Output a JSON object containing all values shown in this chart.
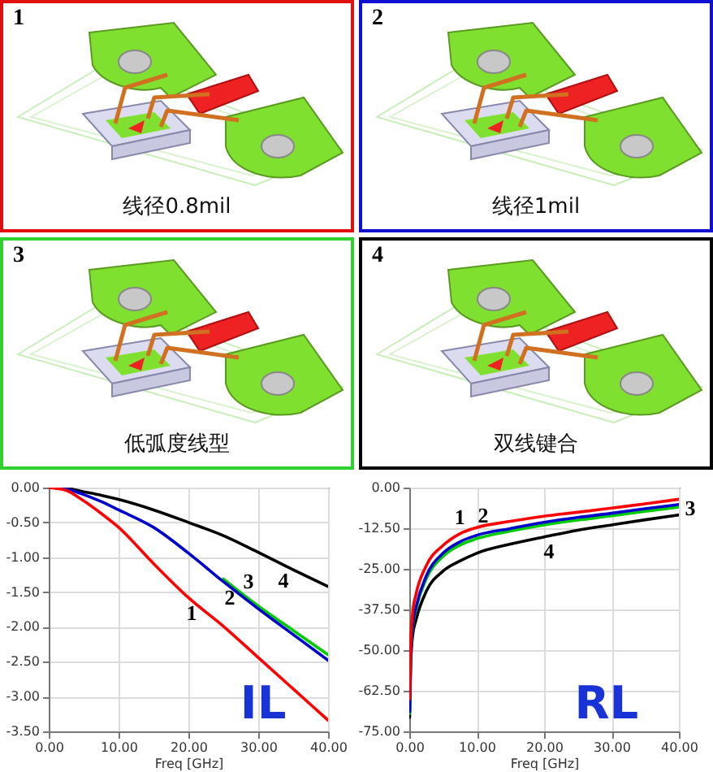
{
  "chart_data": [
    {
      "type": "other",
      "title": "1",
      "annotations": [
        "线径0.8mil"
      ],
      "color": "#e01010"
    },
    {
      "type": "other",
      "title": "2",
      "annotations": [
        "线径1mil"
      ],
      "color": "#1010d0"
    },
    {
      "type": "other",
      "title": "3",
      "annotations": [
        "低弧度线型"
      ],
      "color": "#30d030"
    },
    {
      "type": "other",
      "title": "4",
      "annotations": [
        "双线键合"
      ],
      "color": "#000000"
    },
    {
      "type": "line",
      "xlabel": "Freq [GHz]",
      "x": [
        0,
        2.5,
        5,
        7.5,
        10,
        15,
        20,
        25,
        30,
        35,
        40
      ],
      "series": [
        {
          "name": "1",
          "color": "#ff0000",
          "values": [
            0,
            -0.04,
            -0.19,
            -0.37,
            -0.57,
            -1.09,
            -1.58,
            -1.99,
            -2.44,
            -2.89,
            -3.34
          ]
        },
        {
          "name": "2",
          "color": "#0000cc",
          "values": [
            0,
            -0.02,
            -0.1,
            -0.2,
            -0.32,
            -0.57,
            -0.94,
            -1.35,
            -1.74,
            -2.11,
            -2.48
          ]
        },
        {
          "name": "3",
          "color": "#00cc00",
          "values": [
            null,
            null,
            null,
            null,
            null,
            null,
            null,
            -1.31,
            -1.7,
            -2.05,
            -2.4
          ]
        },
        {
          "name": "4",
          "color": "#000000",
          "values": [
            0,
            -0.01,
            -0.06,
            -0.11,
            -0.17,
            -0.32,
            -0.5,
            -0.69,
            -0.93,
            -1.18,
            -1.42
          ]
        }
      ],
      "xlim": [
        0,
        40
      ],
      "xticks": [
        {
          "value": 0,
          "label": "0.00"
        },
        {
          "value": 10,
          "label": "10.00"
        },
        {
          "value": 20,
          "label": "20.00"
        },
        {
          "value": 30,
          "label": "30.00"
        },
        {
          "value": 40,
          "label": "40.00"
        }
      ],
      "ylim": [
        -3.5,
        0
      ],
      "yticks": [
        {
          "value": 0,
          "label": "0.00"
        },
        {
          "value": -0.5,
          "label": "-0.50"
        },
        {
          "value": -1,
          "label": "-1.00"
        },
        {
          "value": -1.5,
          "label": "-1.50"
        },
        {
          "value": -2,
          "label": "-2.00"
        },
        {
          "value": -2.5,
          "label": "-2.50"
        },
        {
          "value": -3,
          "label": "-3.00"
        },
        {
          "value": -3.5,
          "label": "-3.50"
        }
      ],
      "grid": true,
      "line_style": "solid",
      "annotations": [
        "IL"
      ]
    },
    {
      "type": "line",
      "xlabel": "Freq [GHz]",
      "x": [
        0.05,
        0.2,
        0.5,
        1,
        2.5,
        5,
        7.5,
        10,
        15,
        20,
        25,
        30,
        35,
        40
      ],
      "series": [
        {
          "name": "1",
          "color": "#ff0000",
          "values": [
            -65,
            -48.6,
            -38.4,
            -32.8,
            -24.1,
            -17.8,
            -14.2,
            -12.3,
            -10.4,
            -8.8,
            -7.6,
            -6.3,
            -5.0,
            -3.6
          ]
        },
        {
          "name": "2",
          "color": "#0000cc",
          "values": [
            -69,
            -53.4,
            -42.3,
            -36.8,
            -27.3,
            -20.2,
            -16.7,
            -14.7,
            -12.6,
            -10.7,
            -9.2,
            -7.9,
            -6.5,
            -5.2
          ]
        },
        {
          "name": "3",
          "color": "#00cc00",
          "values": [
            -69.5,
            -54.0,
            -43.0,
            -37.5,
            -28.2,
            -21.2,
            -17.7,
            -15.7,
            -13.4,
            -11.5,
            -10.0,
            -8.7,
            -7.3,
            -6.0
          ]
        },
        {
          "name": "4",
          "color": "#000000",
          "values": [
            -70.7,
            -55.0,
            -45.5,
            -40.7,
            -32.0,
            -25.7,
            -22.6,
            -20.2,
            -17.4,
            -15.2,
            -13.1,
            -11.5,
            -9.9,
            -8.4
          ]
        }
      ],
      "xlim": [
        0,
        40
      ],
      "xticks": [
        {
          "value": 0,
          "label": "0.00"
        },
        {
          "value": 10,
          "label": "10.00"
        },
        {
          "value": 20,
          "label": "20.00"
        },
        {
          "value": 30,
          "label": "30.00"
        },
        {
          "value": 40,
          "label": "40.00"
        }
      ],
      "ylim": [
        -75,
        0
      ],
      "yticks": [
        {
          "value": 0,
          "label": "0.00"
        },
        {
          "value": -12.5,
          "label": "-12.50"
        },
        {
          "value": -25,
          "label": "-25.00"
        },
        {
          "value": -37.5,
          "label": "-37.50"
        },
        {
          "value": -50,
          "label": "-50.00"
        },
        {
          "value": -62.5,
          "label": "-62.50"
        },
        {
          "value": -75,
          "label": "-75.00"
        }
      ],
      "grid": true,
      "line_style": "solid",
      "annotations": [
        "RL"
      ]
    }
  ]
}
